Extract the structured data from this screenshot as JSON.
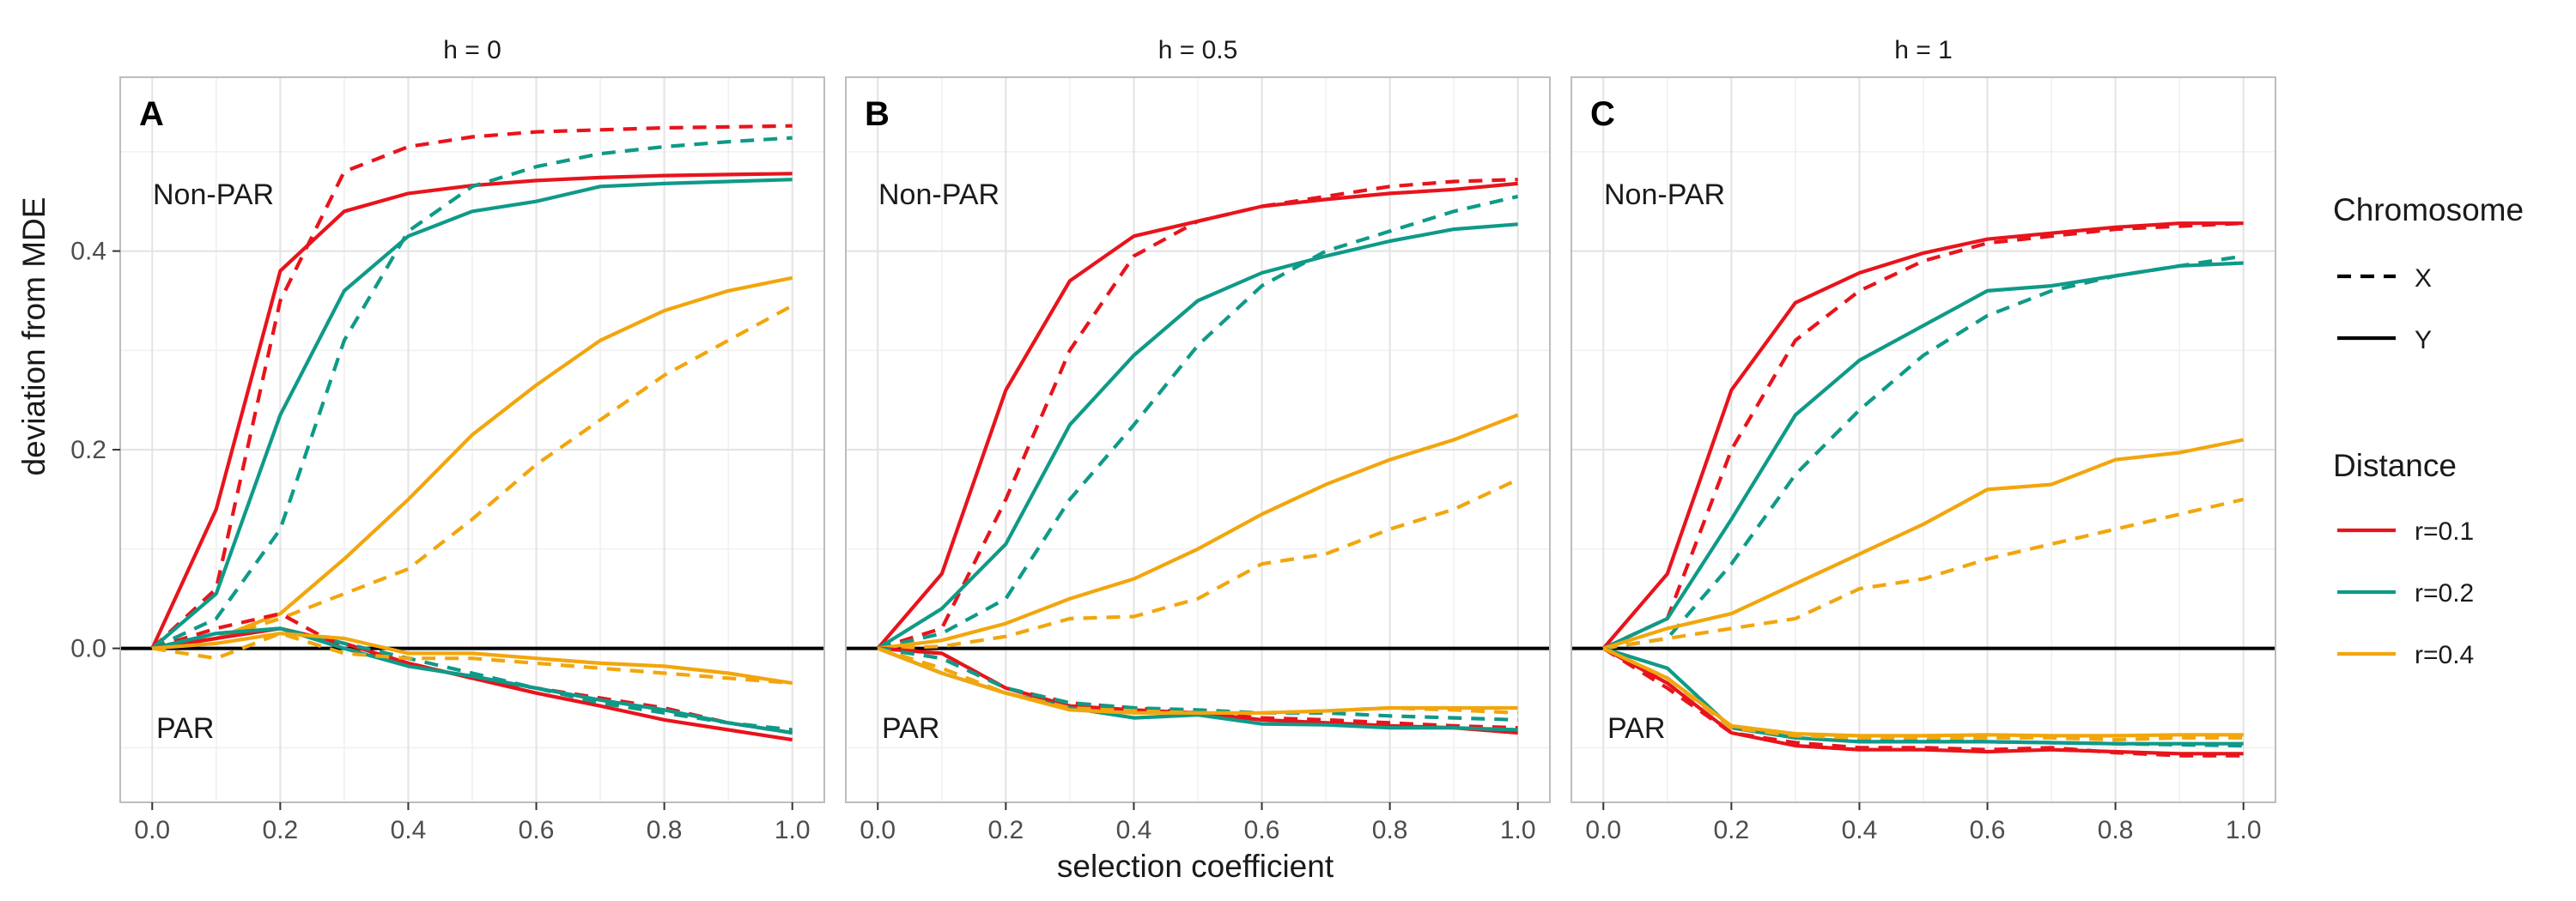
{
  "figure": {
    "ylabel": "deviation from MDE",
    "xlabel": "selection coefficient",
    "legend": {
      "chromosome_title": "Chromosome",
      "chromosome_items": [
        {
          "label": "X",
          "linetype": "dashed"
        },
        {
          "label": "Y",
          "linetype": "solid"
        }
      ],
      "distance_title": "Distance",
      "distance_items": [
        {
          "label": "r=0.1",
          "color": "#e8141c"
        },
        {
          "label": "r=0.2",
          "color": "#0f9a88"
        },
        {
          "label": "r=0.4",
          "color": "#f2a60d"
        }
      ]
    }
  },
  "chart_data": [
    {
      "type": "line",
      "strip_title": "h = 0",
      "panel_label": "A",
      "region_labels": [
        "Non-PAR",
        "PAR"
      ],
      "x": [
        0,
        0.1,
        0.2,
        0.3,
        0.4,
        0.5,
        0.6,
        0.7,
        0.8,
        0.9,
        1.0
      ],
      "xticks": [
        "0.0",
        "0.2",
        "0.4",
        "0.6",
        "0.8",
        "1.0"
      ],
      "yticks": [
        "0.0",
        "0.2",
        "0.4"
      ],
      "xlim": [
        -0.05,
        1.05
      ],
      "ylim": [
        -0.155,
        0.575
      ],
      "series": [
        {
          "distance": "r=0.1",
          "chromosome": "X",
          "region": "Non-PAR",
          "values": [
            0,
            0.06,
            0.35,
            0.48,
            0.505,
            0.515,
            0.52,
            0.522,
            0.524,
            0.525,
            0.526
          ]
        },
        {
          "distance": "r=0.1",
          "chromosome": "Y",
          "region": "Non-PAR",
          "values": [
            0,
            0.14,
            0.38,
            0.44,
            0.458,
            0.466,
            0.471,
            0.474,
            0.476,
            0.477,
            0.478
          ]
        },
        {
          "distance": "r=0.2",
          "chromosome": "X",
          "region": "Non-PAR",
          "values": [
            0,
            0.03,
            0.12,
            0.31,
            0.42,
            0.465,
            0.485,
            0.498,
            0.505,
            0.51,
            0.514
          ]
        },
        {
          "distance": "r=0.2",
          "chromosome": "Y",
          "region": "Non-PAR",
          "values": [
            0,
            0.055,
            0.235,
            0.36,
            0.415,
            0.44,
            0.45,
            0.465,
            0.468,
            0.47,
            0.472
          ]
        },
        {
          "distance": "r=0.4",
          "chromosome": "X",
          "region": "Non-PAR",
          "values": [
            0,
            0.01,
            0.03,
            0.055,
            0.08,
            0.13,
            0.185,
            0.23,
            0.275,
            0.31,
            0.345
          ]
        },
        {
          "distance": "r=0.4",
          "chromosome": "Y",
          "region": "Non-PAR",
          "values": [
            0,
            0.01,
            0.035,
            0.09,
            0.15,
            0.215,
            0.265,
            0.31,
            0.34,
            0.36,
            0.373
          ]
        },
        {
          "distance": "r=0.1",
          "chromosome": "X",
          "region": "PAR",
          "values": [
            0,
            0.02,
            0.035,
            0.0,
            -0.015,
            -0.03,
            -0.04,
            -0.05,
            -0.06,
            -0.075,
            -0.085
          ]
        },
        {
          "distance": "r=0.1",
          "chromosome": "Y",
          "region": "PAR",
          "values": [
            0,
            0.01,
            0.02,
            0.005,
            -0.015,
            -0.03,
            -0.045,
            -0.058,
            -0.072,
            -0.082,
            -0.092
          ]
        },
        {
          "distance": "r=0.2",
          "chromosome": "X",
          "region": "PAR",
          "values": [
            0,
            0.015,
            0.02,
            0.005,
            -0.01,
            -0.025,
            -0.04,
            -0.055,
            -0.065,
            -0.075,
            -0.082
          ]
        },
        {
          "distance": "r=0.2",
          "chromosome": "Y",
          "region": "PAR",
          "values": [
            0,
            0.015,
            0.02,
            0.0,
            -0.018,
            -0.028,
            -0.04,
            -0.052,
            -0.062,
            -0.075,
            -0.085
          ]
        },
        {
          "distance": "r=0.4",
          "chromosome": "X",
          "region": "PAR",
          "values": [
            0,
            -0.01,
            0.015,
            -0.005,
            -0.01,
            -0.01,
            -0.015,
            -0.02,
            -0.025,
            -0.03,
            -0.035
          ]
        },
        {
          "distance": "r=0.4",
          "chromosome": "Y",
          "region": "PAR",
          "values": [
            0,
            0.005,
            0.015,
            0.01,
            -0.005,
            -0.005,
            -0.01,
            -0.015,
            -0.018,
            -0.025,
            -0.035
          ]
        }
      ]
    },
    {
      "type": "line",
      "strip_title": "h = 0.5",
      "panel_label": "B",
      "region_labels": [
        "Non-PAR",
        "PAR"
      ],
      "x": [
        0,
        0.1,
        0.2,
        0.3,
        0.4,
        0.5,
        0.6,
        0.7,
        0.8,
        0.9,
        1.0
      ],
      "xticks": [
        "0.0",
        "0.2",
        "0.4",
        "0.6",
        "0.8",
        "1.0"
      ],
      "yticks": [
        "0.0",
        "0.2",
        "0.4"
      ],
      "xlim": [
        -0.05,
        1.05
      ],
      "ylim": [
        -0.155,
        0.575
      ],
      "series": [
        {
          "distance": "r=0.1",
          "chromosome": "X",
          "region": "Non-PAR",
          "values": [
            0,
            0.02,
            0.15,
            0.3,
            0.395,
            0.43,
            0.445,
            0.455,
            0.465,
            0.47,
            0.472
          ]
        },
        {
          "distance": "r=0.1",
          "chromosome": "Y",
          "region": "Non-PAR",
          "values": [
            0,
            0.075,
            0.26,
            0.37,
            0.415,
            0.43,
            0.445,
            0.452,
            0.458,
            0.462,
            0.468
          ]
        },
        {
          "distance": "r=0.2",
          "chromosome": "X",
          "region": "Non-PAR",
          "values": [
            0,
            0.015,
            0.05,
            0.15,
            0.225,
            0.305,
            0.365,
            0.4,
            0.42,
            0.44,
            0.455
          ]
        },
        {
          "distance": "r=0.2",
          "chromosome": "Y",
          "region": "Non-PAR",
          "values": [
            0,
            0.04,
            0.105,
            0.225,
            0.295,
            0.35,
            0.378,
            0.395,
            0.41,
            0.422,
            0.427
          ]
        },
        {
          "distance": "r=0.4",
          "chromosome": "X",
          "region": "Non-PAR",
          "values": [
            0,
            0.002,
            0.012,
            0.03,
            0.032,
            0.05,
            0.085,
            0.095,
            0.12,
            0.14,
            0.17
          ]
        },
        {
          "distance": "r=0.4",
          "chromosome": "Y",
          "region": "Non-PAR",
          "values": [
            0,
            0.008,
            0.025,
            0.05,
            0.07,
            0.1,
            0.135,
            0.165,
            0.19,
            0.21,
            0.235
          ]
        },
        {
          "distance": "r=0.1",
          "chromosome": "X",
          "region": "PAR",
          "values": [
            0,
            -0.005,
            -0.04,
            -0.055,
            -0.06,
            -0.065,
            -0.07,
            -0.072,
            -0.075,
            -0.078,
            -0.08
          ]
        },
        {
          "distance": "r=0.1",
          "chromosome": "Y",
          "region": "PAR",
          "values": [
            0,
            -0.005,
            -0.04,
            -0.058,
            -0.062,
            -0.065,
            -0.072,
            -0.075,
            -0.078,
            -0.08,
            -0.085
          ]
        },
        {
          "distance": "r=0.2",
          "chromosome": "X",
          "region": "PAR",
          "values": [
            0,
            -0.01,
            -0.04,
            -0.055,
            -0.06,
            -0.062,
            -0.065,
            -0.065,
            -0.068,
            -0.07,
            -0.072
          ]
        },
        {
          "distance": "r=0.2",
          "chromosome": "Y",
          "region": "PAR",
          "values": [
            0,
            -0.025,
            -0.045,
            -0.06,
            -0.07,
            -0.067,
            -0.076,
            -0.077,
            -0.08,
            -0.08,
            -0.082
          ]
        },
        {
          "distance": "r=0.4",
          "chromosome": "X",
          "region": "PAR",
          "values": [
            0,
            -0.02,
            -0.045,
            -0.06,
            -0.063,
            -0.065,
            -0.065,
            -0.063,
            -0.06,
            -0.062,
            -0.065
          ]
        },
        {
          "distance": "r=0.4",
          "chromosome": "Y",
          "region": "PAR",
          "values": [
            0,
            -0.025,
            -0.045,
            -0.062,
            -0.065,
            -0.065,
            -0.065,
            -0.063,
            -0.06,
            -0.06,
            -0.06
          ]
        }
      ]
    },
    {
      "type": "line",
      "strip_title": "h = 1",
      "panel_label": "C",
      "region_labels": [
        "Non-PAR",
        "PAR"
      ],
      "x": [
        0,
        0.1,
        0.2,
        0.3,
        0.4,
        0.5,
        0.6,
        0.7,
        0.8,
        0.9,
        1.0
      ],
      "xticks": [
        "0.0",
        "0.2",
        "0.4",
        "0.6",
        "0.8",
        "1.0"
      ],
      "yticks": [
        "0.0",
        "0.2",
        "0.4"
      ],
      "xlim": [
        -0.05,
        1.05
      ],
      "ylim": [
        -0.155,
        0.575
      ],
      "series": [
        {
          "distance": "r=0.1",
          "chromosome": "X",
          "region": "Non-PAR",
          "values": [
            0,
            0.03,
            0.2,
            0.31,
            0.36,
            0.39,
            0.408,
            0.415,
            0.422,
            0.425,
            0.428
          ]
        },
        {
          "distance": "r=0.1",
          "chromosome": "Y",
          "region": "Non-PAR",
          "values": [
            0,
            0.075,
            0.26,
            0.348,
            0.378,
            0.398,
            0.412,
            0.418,
            0.424,
            0.428,
            0.428
          ]
        },
        {
          "distance": "r=0.2",
          "chromosome": "X",
          "region": "Non-PAR",
          "values": [
            0,
            0.01,
            0.085,
            0.175,
            0.24,
            0.295,
            0.335,
            0.36,
            0.375,
            0.385,
            0.395
          ]
        },
        {
          "distance": "r=0.2",
          "chromosome": "Y",
          "region": "Non-PAR",
          "values": [
            0,
            0.03,
            0.13,
            0.235,
            0.29,
            0.325,
            0.36,
            0.365,
            0.375,
            0.385,
            0.388
          ]
        },
        {
          "distance": "r=0.4",
          "chromosome": "X",
          "region": "Non-PAR",
          "values": [
            0,
            0.01,
            0.02,
            0.03,
            0.06,
            0.07,
            0.09,
            0.105,
            0.12,
            0.135,
            0.15
          ]
        },
        {
          "distance": "r=0.4",
          "chromosome": "Y",
          "region": "Non-PAR",
          "values": [
            0,
            0.02,
            0.035,
            0.065,
            0.095,
            0.125,
            0.16,
            0.165,
            0.19,
            0.197,
            0.21
          ]
        },
        {
          "distance": "r=0.1",
          "chromosome": "X",
          "region": "PAR",
          "values": [
            0,
            -0.04,
            -0.085,
            -0.095,
            -0.1,
            -0.1,
            -0.102,
            -0.1,
            -0.105,
            -0.108,
            -0.108
          ]
        },
        {
          "distance": "r=0.1",
          "chromosome": "Y",
          "region": "PAR",
          "values": [
            0,
            -0.035,
            -0.085,
            -0.098,
            -0.102,
            -0.102,
            -0.104,
            -0.102,
            -0.104,
            -0.106,
            -0.106
          ]
        },
        {
          "distance": "r=0.2",
          "chromosome": "X",
          "region": "PAR",
          "values": [
            0,
            -0.03,
            -0.08,
            -0.09,
            -0.093,
            -0.093,
            -0.094,
            -0.095,
            -0.096,
            -0.097,
            -0.098
          ]
        },
        {
          "distance": "r=0.2",
          "chromosome": "Y",
          "region": "PAR",
          "values": [
            0,
            -0.02,
            -0.08,
            -0.09,
            -0.094,
            -0.094,
            -0.094,
            -0.095,
            -0.096,
            -0.096,
            -0.096
          ]
        },
        {
          "distance": "r=0.4",
          "chromosome": "X",
          "region": "PAR",
          "values": [
            0,
            -0.03,
            -0.08,
            -0.088,
            -0.09,
            -0.09,
            -0.09,
            -0.09,
            -0.092,
            -0.09,
            -0.09
          ]
        },
        {
          "distance": "r=0.4",
          "chromosome": "Y",
          "region": "PAR",
          "values": [
            0,
            -0.03,
            -0.078,
            -0.086,
            -0.088,
            -0.088,
            -0.087,
            -0.088,
            -0.088,
            -0.087,
            -0.087
          ]
        }
      ]
    }
  ]
}
